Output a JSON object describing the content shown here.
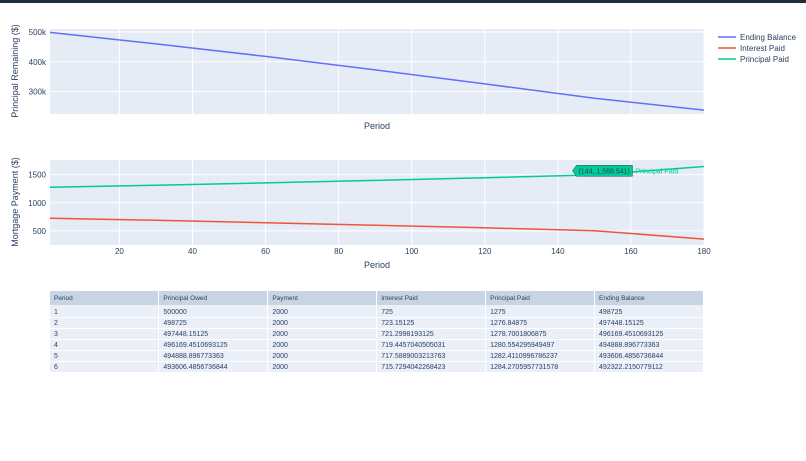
{
  "chart_data": [
    {
      "type": "line",
      "ylabel": "Principal Remaining ($)",
      "xlabel": "Period",
      "xlim": [
        1,
        180
      ],
      "ylim": [
        225000,
        510000
      ],
      "ytick_values": [
        300000,
        400000,
        500000
      ],
      "ytick_labels": [
        "300k",
        "400k",
        "500k"
      ],
      "grid": true,
      "series": [
        {
          "name": "Ending Balance",
          "color": "#636efa",
          "x": [
            1,
            30,
            60,
            90,
            120,
            150,
            180
          ],
          "y": [
            498725,
            460000,
            418000,
            373000,
            326000,
            278000,
            238000
          ]
        }
      ]
    },
    {
      "type": "line",
      "ylabel": "Mortgage Payment ($)",
      "xlabel": "Period",
      "xlim": [
        1,
        180
      ],
      "ylim": [
        250,
        1760
      ],
      "ytick_values": [
        500,
        1000,
        1500
      ],
      "ytick_labels": [
        "500",
        "1000",
        "1500"
      ],
      "xtick_values": [
        20,
        40,
        60,
        80,
        100,
        120,
        140,
        160,
        180
      ],
      "xtick_labels": [
        "20",
        "40",
        "60",
        "80",
        "100",
        "120",
        "140",
        "160",
        "180"
      ],
      "grid": true,
      "series": [
        {
          "name": "Interest Paid",
          "color": "#ef553b",
          "x": [
            1,
            30,
            60,
            90,
            120,
            150,
            180
          ],
          "y": [
            725,
            688,
            647,
            602,
            555,
            504,
            355
          ]
        },
        {
          "name": "Principal Paid",
          "color": "#00cc96",
          "x": [
            1,
            30,
            60,
            90,
            120,
            150,
            180
          ],
          "y": [
            1275,
            1312,
            1353,
            1398,
            1445,
            1496,
            1645
          ]
        }
      ],
      "hover": {
        "x": 144,
        "y": 1568.541,
        "label": "(144, 1,568.541)",
        "series": "Principal Paid"
      }
    }
  ],
  "legend": {
    "placement": "top-right",
    "items": [
      {
        "label": "Ending Balance",
        "color": "#636efa"
      },
      {
        "label": "Interest Paid",
        "color": "#ef553b"
      },
      {
        "label": "Principal Paid",
        "color": "#00cc96"
      }
    ]
  },
  "table": {
    "headers": [
      "Period",
      "Principal Owed",
      "Payment",
      "Interest Paid",
      "Principal Paid",
      "Ending Balance"
    ],
    "rows": [
      [
        "1",
        "500000",
        "2000",
        "725",
        "1275",
        "498725"
      ],
      [
        "2",
        "498725",
        "2000",
        "723.15125",
        "1276.84875",
        "497448.15125"
      ],
      [
        "3",
        "497448.15125",
        "2000",
        "721.2998193125",
        "1278.7001806875",
        "496169.4510693125"
      ],
      [
        "4",
        "496169.4510693125",
        "2000",
        "719.4457040505031",
        "1280.554295949497",
        "494888.896773363"
      ],
      [
        "5",
        "494888.896773363",
        "2000",
        "717.5889003213763",
        "1282.4110996786237",
        "493606.4856736844"
      ],
      [
        "6",
        "493606.4856736844",
        "2000",
        "715.7294042268423",
        "1284.2705957731578",
        "492322.2150779112"
      ]
    ]
  }
}
